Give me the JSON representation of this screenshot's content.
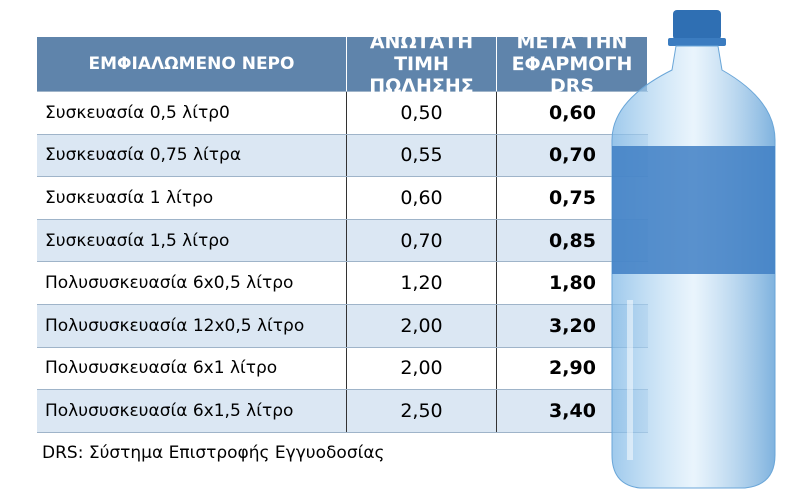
{
  "table": {
    "headers": [
      "ΕΜΦΙΑΛΩΜΕΝΟ ΝΕΡΟ",
      "ΑΝΩΤΑΤΗ ΤΙΜΗ ΠΩΛΗΣΗΣ",
      "ΜΕΤΑ ΤΗΝ ΕΦΑΡΜΟΓΗ DRS"
    ],
    "rows": [
      [
        "Συσκευασία 0,5 λίτρ0",
        "0,50",
        "0,60"
      ],
      [
        "Συσκευασία 0,75 λίτρα",
        "0,55",
        "0,70"
      ],
      [
        "Συσκευασία 1 λίτρο",
        "0,60",
        "0,75"
      ],
      [
        "Συσκευασία 1,5 λίτρο",
        "0,70",
        "0,85"
      ],
      [
        "Πολυσυσκευασία 6x0,5 λίτρο",
        "1,20",
        "1,80"
      ],
      [
        "Πολυσυσκευασία 12x0,5 λίτρο",
        "2,00",
        "3,20"
      ],
      [
        "Πολυσυσκευασία 6x1 λίτρο",
        "2,00",
        "2,90"
      ],
      [
        "Πολυσυσκευασία 6x1,5 λίτρο",
        "2,50",
        "3,40"
      ]
    ]
  },
  "footnote": "DRS: Σύστημα Επιστροφής Εγγυοδοσίας"
}
